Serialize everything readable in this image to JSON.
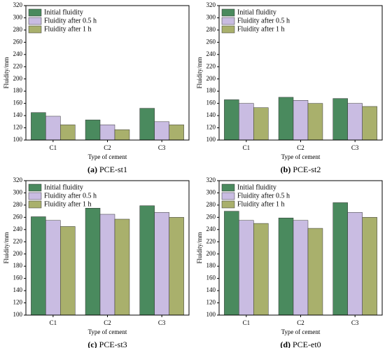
{
  "chart_data": [
    {
      "type": "bar",
      "label": "(a)",
      "title": "PCE-st1",
      "xlabel": "Type of cement",
      "ylabel": "Fluidity/mm",
      "categories": [
        "C1",
        "C2",
        "C3"
      ],
      "series": [
        {
          "name": "Initial fluidity",
          "color": "#4a8a5e",
          "values": [
            145,
            133,
            152
          ]
        },
        {
          "name": "Fluidity after 0.5 h",
          "color": "#c9bce2",
          "values": [
            139,
            125,
            130
          ]
        },
        {
          "name": "Fluidity after 1 h",
          "color": "#a9b06c",
          "values": [
            125,
            117,
            125
          ]
        }
      ],
      "ylim": [
        100,
        320
      ],
      "yticks": [
        100,
        120,
        140,
        160,
        180,
        200,
        220,
        240,
        260,
        280,
        300,
        320
      ]
    },
    {
      "type": "bar",
      "label": "(b)",
      "title": "PCE-st2",
      "xlabel": "Type of cement",
      "ylabel": "Fluidity/mm",
      "categories": [
        "C1",
        "C2",
        "C3"
      ],
      "series": [
        {
          "name": "Initial fluidity",
          "color": "#4a8a5e",
          "values": [
            166,
            170,
            168
          ]
        },
        {
          "name": "Fluidity after 0.5 h",
          "color": "#c9bce2",
          "values": [
            160,
            165,
            160
          ]
        },
        {
          "name": "Fluidity after 1 h",
          "color": "#a9b06c",
          "values": [
            153,
            160,
            155
          ]
        }
      ],
      "ylim": [
        100,
        320
      ],
      "yticks": [
        100,
        120,
        140,
        160,
        180,
        200,
        220,
        240,
        260,
        280,
        300,
        320
      ]
    },
    {
      "type": "bar",
      "label": "(c)",
      "title": "PCE-st3",
      "xlabel": "Type of cement",
      "ylabel": "Fluidity/mm",
      "categories": [
        "C1",
        "C2",
        "C3"
      ],
      "series": [
        {
          "name": "Initial fluidity",
          "color": "#4a8a5e",
          "values": [
            261,
            275,
            279
          ]
        },
        {
          "name": "Fluidity after 0.5 h",
          "color": "#c9bce2",
          "values": [
            255,
            265,
            268
          ]
        },
        {
          "name": "Fluidity after 1 h",
          "color": "#a9b06c",
          "values": [
            245,
            257,
            260
          ]
        }
      ],
      "ylim": [
        100,
        320
      ],
      "yticks": [
        100,
        120,
        140,
        160,
        180,
        200,
        220,
        240,
        260,
        280,
        300,
        320
      ]
    },
    {
      "type": "bar",
      "label": "(d)",
      "title": "PCE-et0",
      "xlabel": "Type of cement",
      "ylabel": "Fluidity/mm",
      "categories": [
        "C1",
        "C2",
        "C3"
      ],
      "series": [
        {
          "name": "Initial fluidity",
          "color": "#4a8a5e",
          "values": [
            270,
            259,
            284
          ]
        },
        {
          "name": "Fluidity after 0.5 h",
          "color": "#c9bce2",
          "values": [
            255,
            255,
            268
          ]
        },
        {
          "name": "Fluidity after 1 h",
          "color": "#a9b06c",
          "values": [
            250,
            242,
            260
          ]
        }
      ],
      "ylim": [
        100,
        320
      ],
      "yticks": [
        100,
        120,
        140,
        160,
        180,
        200,
        220,
        240,
        260,
        280,
        300,
        320
      ]
    }
  ]
}
